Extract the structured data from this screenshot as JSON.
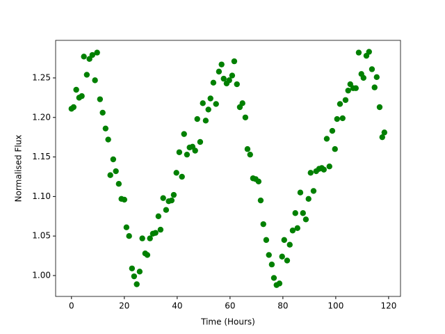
{
  "chart_data": {
    "type": "scatter",
    "x_label": "Time (Hours)",
    "y_label": "Normalised Flux",
    "color": "#008000",
    "xlim": [
      -6,
      124.5
    ],
    "ylim": [
      0.9736,
      1.2975
    ],
    "xticks": [
      0,
      20,
      40,
      60,
      80,
      100,
      120
    ],
    "yticks": [
      {
        "value": 1,
        "label": "1.00"
      },
      1.05,
      {
        "value": 1.1,
        "label": "1.10"
      },
      1.15,
      {
        "value": 1.2,
        "label": "1.20"
      },
      1.25
    ],
    "x": [
      0,
      0.8,
      1.8,
      2.9,
      3.9,
      4.7,
      5.8,
      6.8,
      7.9,
      8.9,
      9.7,
      10.8,
      11.8,
      12.9,
      13.9,
      14.7,
      15.8,
      16.8,
      17.9,
      18.9,
      20.0,
      20.8,
      21.8,
      22.9,
      23.7,
      24.7,
      25.8,
      26.8,
      27.9,
      28.7,
      29.7,
      30.8,
      31.8,
      32.9,
      33.7,
      34.7,
      35.8,
      36.8,
      37.9,
      38.7,
      39.7,
      40.8,
      41.8,
      42.6,
      43.7,
      44.7,
      45.8,
      46.8,
      47.6,
      48.7,
      49.7,
      50.8,
      51.8,
      52.6,
      53.7,
      54.7,
      55.8,
      56.8,
      57.6,
      58.7,
      59.7,
      60.8,
      61.6,
      62.6,
      63.7,
      64.7,
      65.8,
      66.6,
      67.6,
      68.7,
      69.7,
      70.8,
      71.6,
      72.6,
      73.7,
      74.7,
      75.8,
      76.6,
      77.6,
      78.7,
      79.7,
      80.5,
      81.6,
      82.6,
      83.7,
      84.7,
      85.5,
      86.6,
      87.6,
      88.7,
      89.7,
      90.5,
      91.6,
      92.6,
      93.7,
      94.7,
      95.5,
      96.6,
      97.6,
      98.7,
      99.7,
      100.5,
      101.6,
      102.6,
      103.7,
      104.7,
      105.5,
      106.6,
      107.6,
      108.7,
      109.7,
      110.5,
      111.6,
      112.6,
      113.7,
      114.7,
      115.5,
      116.6,
      117.6,
      118.4
    ],
    "values": [
      1.211,
      1.213,
      1.235,
      1.225,
      1.227,
      1.277,
      1.254,
      1.274,
      1.279,
      1.247,
      1.282,
      1.223,
      1.206,
      1.186,
      1.172,
      1.127,
      1.147,
      1.132,
      1.116,
      1.097,
      1.096,
      1.061,
      1.05,
      1.009,
      0.999,
      0.989,
      1.005,
      1.047,
      1.028,
      1.026,
      1.047,
      1.053,
      1.054,
      1.075,
      1.058,
      1.098,
      1.083,
      1.094,
      1.095,
      1.102,
      1.13,
      1.156,
      1.125,
      1.179,
      1.153,
      1.162,
      1.163,
      1.158,
      1.198,
      1.169,
      1.218,
      1.196,
      1.21,
      1.224,
      1.244,
      1.217,
      1.258,
      1.267,
      1.249,
      1.243,
      1.247,
      1.253,
      1.271,
      1.242,
      1.213,
      1.218,
      1.2,
      1.16,
      1.153,
      1.123,
      1.122,
      1.119,
      1.095,
      1.065,
      1.045,
      1.026,
      1.014,
      0.997,
      0.988,
      0.99,
      1.024,
      1.045,
      1.019,
      1.039,
      1.057,
      1.079,
      1.06,
      1.105,
      1.079,
      1.071,
      1.097,
      1.13,
      1.107,
      1.132,
      1.135,
      1.136,
      1.134,
      1.173,
      1.138,
      1.183,
      1.16,
      1.198,
      1.217,
      1.199,
      1.222,
      1.234,
      1.242,
      1.237,
      1.237,
      1.282,
      1.255,
      1.25,
      1.278,
      1.283,
      1.261,
      1.238,
      1.251,
      1.213,
      1.175,
      1.181
    ]
  }
}
